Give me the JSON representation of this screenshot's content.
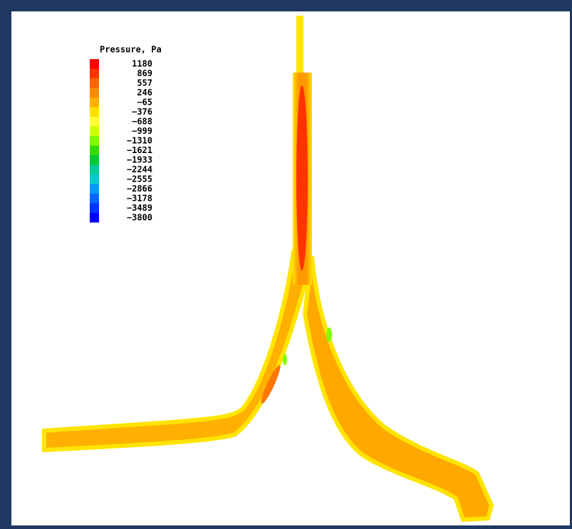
{
  "legend": {
    "title": "Pressure, Pa",
    "labels": [
      "1180",
      "869",
      "557",
      "246",
      "−65",
      "−376",
      "−688",
      "−999",
      "−1310",
      "−1621",
      "−1933",
      "−2244",
      "−2555",
      "−2866",
      "−3178",
      "−3489",
      "−3800"
    ],
    "colors": [
      "#ff0000",
      "#ff3300",
      "#ff6600",
      "#ff8c00",
      "#ffb000",
      "#ffe000",
      "#ffff33",
      "#ccff00",
      "#80ff00",
      "#33dd00",
      "#00cc33",
      "#00cc99",
      "#00cccc",
      "#0099ff",
      "#0066ff",
      "#0033ff",
      "#0000ff"
    ]
  }
}
